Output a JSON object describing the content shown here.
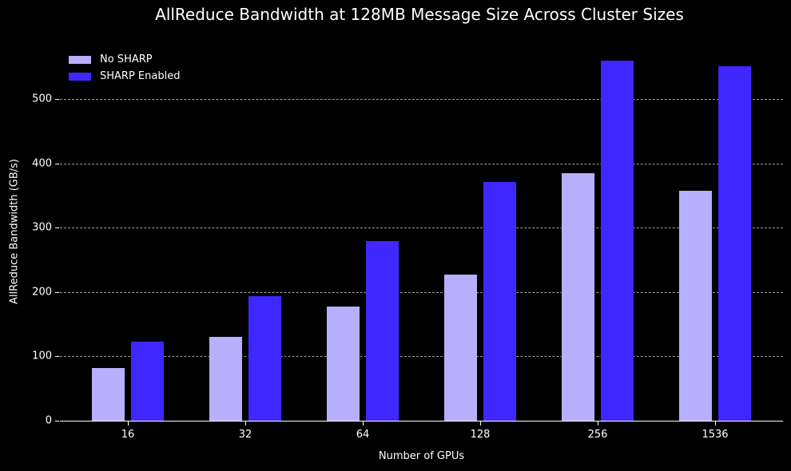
{
  "chart_data": {
    "type": "bar",
    "title": "AllReduce Bandwidth at 128MB Message Size Across Cluster Sizes",
    "xlabel": "Number of GPUs",
    "ylabel": "AllReduce Bandwidth (GB/s)",
    "categories": [
      "16",
      "32",
      "64",
      "128",
      "256",
      "1536"
    ],
    "series": [
      {
        "name": "No SHARP",
        "color": "#b8b0ff",
        "values": [
          82,
          130,
          178,
          227,
          385,
          357
        ]
      },
      {
        "name": "SHARP Enabled",
        "color": "#3f28ff",
        "values": [
          123,
          194,
          279,
          371,
          560,
          551
        ]
      }
    ],
    "yticks": [
      0,
      100,
      200,
      300,
      400,
      500
    ],
    "ylim": [
      0,
      595
    ],
    "grid": {
      "y": true,
      "x": false,
      "style": "dashed"
    },
    "legend_position": "upper left"
  }
}
